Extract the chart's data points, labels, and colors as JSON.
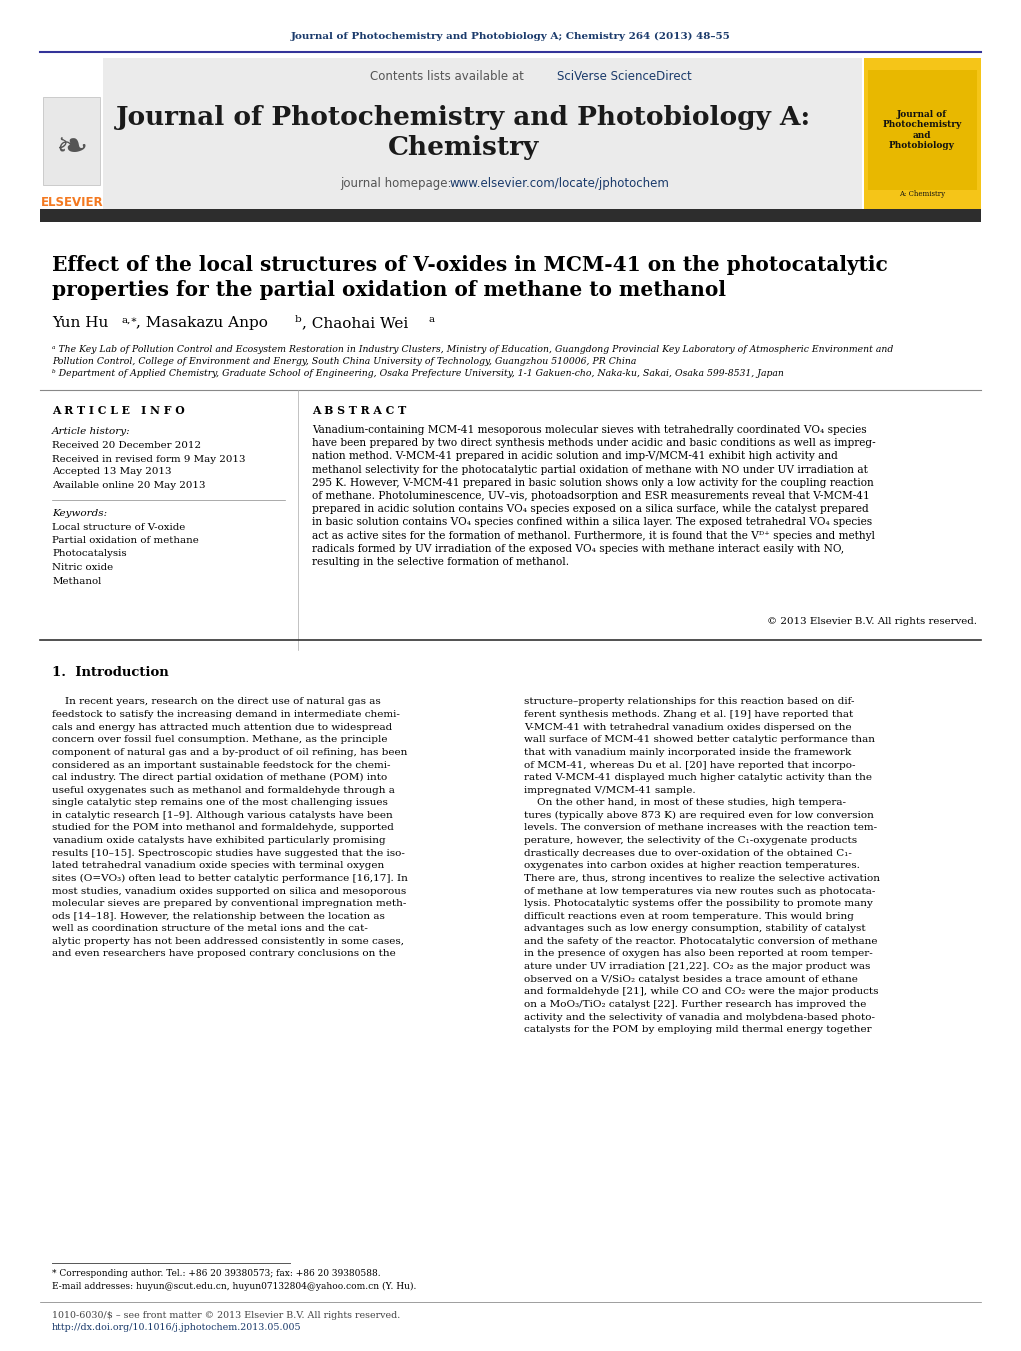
{
  "page_bg": "#ffffff",
  "top_journal_ref": "Journal of Photochemistry and Photobiology A; Chemistry 264 (2013) 48–55",
  "header_bg": "#e8e8e8",
  "contents_line_plain": "Contents lists available at ",
  "contents_line_colored": "SciVerse ScienceDirect",
  "journal_title_line1": "Journal of Photochemistry and Photobiology A:",
  "journal_title_line2": "Chemistry",
  "journal_homepage_plain": "journal homepage: ",
  "journal_homepage_link": "www.elsevier.com/locate/jphotochem",
  "dark_bar_color": "#2d2d2d",
  "article_title_line1": "Effect of the local structures of V-oxides in MCM-41 on the photocatalytic",
  "article_title_line2": "properties for the partial oxidation of methane to methanol",
  "section_article_info": "A R T I C L E   I N F O",
  "section_abstract": "A B S T R A C T",
  "article_history_label": "Article history:",
  "received": "Received 20 December 2012",
  "received_revised": "Received in revised form 9 May 2013",
  "accepted": "Accepted 13 May 2013",
  "available": "Available online 20 May 2013",
  "keywords_label": "Keywords:",
  "keywords": [
    "Local structure of V-oxide",
    "Partial oxidation of methane",
    "Photocatalysis",
    "Nitric oxide",
    "Methanol"
  ],
  "abstract_lines": [
    "Vanadium-containing MCM-41 mesoporous molecular sieves with tetrahedrally coordinated VO₄ species",
    "have been prepared by two direct synthesis methods under acidic and basic conditions as well as impreg-",
    "nation method. V-MCM-41 prepared in acidic solution and imp-V/MCM-41 exhibit high activity and",
    "methanol selectivity for the photocatalytic partial oxidation of methane with NO under UV irradiation at",
    "295 K. However, V-MCM-41 prepared in basic solution shows only a low activity for the coupling reaction",
    "of methane. Photoluminescence, UV–vis, photoadsorption and ESR measurements reveal that V-MCM-41",
    "prepared in acidic solution contains VO₄ species exposed on a silica surface, while the catalyst prepared",
    "in basic solution contains VO₄ species confined within a silica layer. The exposed tetrahedral VO₄ species",
    "act as active sites for the formation of methanol. Furthermore, it is found that the Vᴰ⁺ species and methyl",
    "radicals formed by UV irradiation of the exposed VO₄ species with methane interact easily with NO,",
    "resulting in the selective formation of methanol."
  ],
  "copyright": "© 2013 Elsevier B.V. All rights reserved.",
  "intro_heading": "1.  Introduction",
  "intro_col1_lines": [
    "    In recent years, research on the direct use of natural gas as",
    "feedstock to satisfy the increasing demand in intermediate chemi-",
    "cals and energy has attracted much attention due to widespread",
    "concern over fossil fuel consumption. Methane, as the principle",
    "component of natural gas and a by-product of oil refining, has been",
    "considered as an important sustainable feedstock for the chemi-",
    "cal industry. The direct partial oxidation of methane (POM) into",
    "useful oxygenates such as methanol and formaldehyde through a",
    "single catalytic step remains one of the most challenging issues",
    "in catalytic research [1–9]. Although various catalysts have been",
    "studied for the POM into methanol and formaldehyde, supported",
    "vanadium oxide catalysts have exhibited particularly promising",
    "results [10–15]. Spectroscopic studies have suggested that the iso-",
    "lated tetrahedral vanadium oxide species with terminal oxygen",
    "sites (O=VO₃) often lead to better catalytic performance [16,17]. In",
    "most studies, vanadium oxides supported on silica and mesoporous",
    "molecular sieves are prepared by conventional impregnation meth-",
    "ods [14–18]. However, the relationship between the location as",
    "well as coordination structure of the metal ions and the cat-",
    "alytic property has not been addressed consistently in some cases,",
    "and even researchers have proposed contrary conclusions on the"
  ],
  "intro_col2_lines": [
    "structure–property relationships for this reaction based on dif-",
    "ferent synthesis methods. Zhang et al. [19] have reported that",
    "V-MCM-41 with tetrahedral vanadium oxides dispersed on the",
    "wall surface of MCM-41 showed better catalytic performance than",
    "that with vanadium mainly incorporated inside the framework",
    "of MCM-41, whereas Du et al. [20] have reported that incorpo-",
    "rated V-MCM-41 displayed much higher catalytic activity than the",
    "impregnated V/MCM-41 sample.",
    "    On the other hand, in most of these studies, high tempera-",
    "tures (typically above 873 K) are required even for low conversion",
    "levels. The conversion of methane increases with the reaction tem-",
    "perature, however, the selectivity of the C₁-oxygenate products",
    "drastically decreases due to over-oxidation of the obtained C₁-",
    "oxygenates into carbon oxides at higher reaction temperatures.",
    "There are, thus, strong incentives to realize the selective activation",
    "of methane at low temperatures via new routes such as photocata-",
    "lysis. Photocatalytic systems offer the possibility to promote many",
    "difficult reactions even at room temperature. This would bring",
    "advantages such as low energy consumption, stability of catalyst",
    "and the safety of the reactor. Photocatalytic conversion of methane",
    "in the presence of oxygen has also been reported at room temper-",
    "ature under UV irradiation [21,22]. CO₂ as the major product was",
    "observed on a V/SiO₂ catalyst besides a trace amount of ethane",
    "and formaldehyde [21], while CO and CO₂ were the major products",
    "on a MoO₃/TiO₂ catalyst [22]. Further research has improved the",
    "activity and the selectivity of vanadia and molybdena-based photo-",
    "catalysts for the POM by employing mild thermal energy together"
  ],
  "footer_line1": "1010-6030/$ – see front matter © 2013 Elsevier B.V. All rights reserved.",
  "footer_line2": "http://dx.doi.org/10.1016/j.jphotochem.2013.05.005",
  "footnote1": "* Corresponding author. Tel.: +86 20 39380573; fax: +86 20 39380588.",
  "footnote2": "E-mail addresses: huyun@scut.edu.cn, huyun07132804@yahoo.com.cn (Y. Hu).",
  "elsevier_color": "#f47920",
  "link_color": "#1a3a6b",
  "header_text_color": "#555555",
  "journal_title_color": "#1a1a1a",
  "affil_a_line1": "ᵃ The Key Lab of Pollution Control and Ecosystem Restoration in Industry Clusters, Ministry of Education, Guangdong Provincial Key Laboratory of Atmospheric Environment and",
  "affil_a_line2": "Pollution Control, College of Environment and Energy, South China University of Technology, Guangzhou 510006, PR China",
  "affil_b": "ᵇ Department of Applied Chemistry, Graduate School of Engineering, Osaka Prefecture University, 1-1 Gakuen-cho, Naka-ku, Sakai, Osaka 599-8531, Japan"
}
